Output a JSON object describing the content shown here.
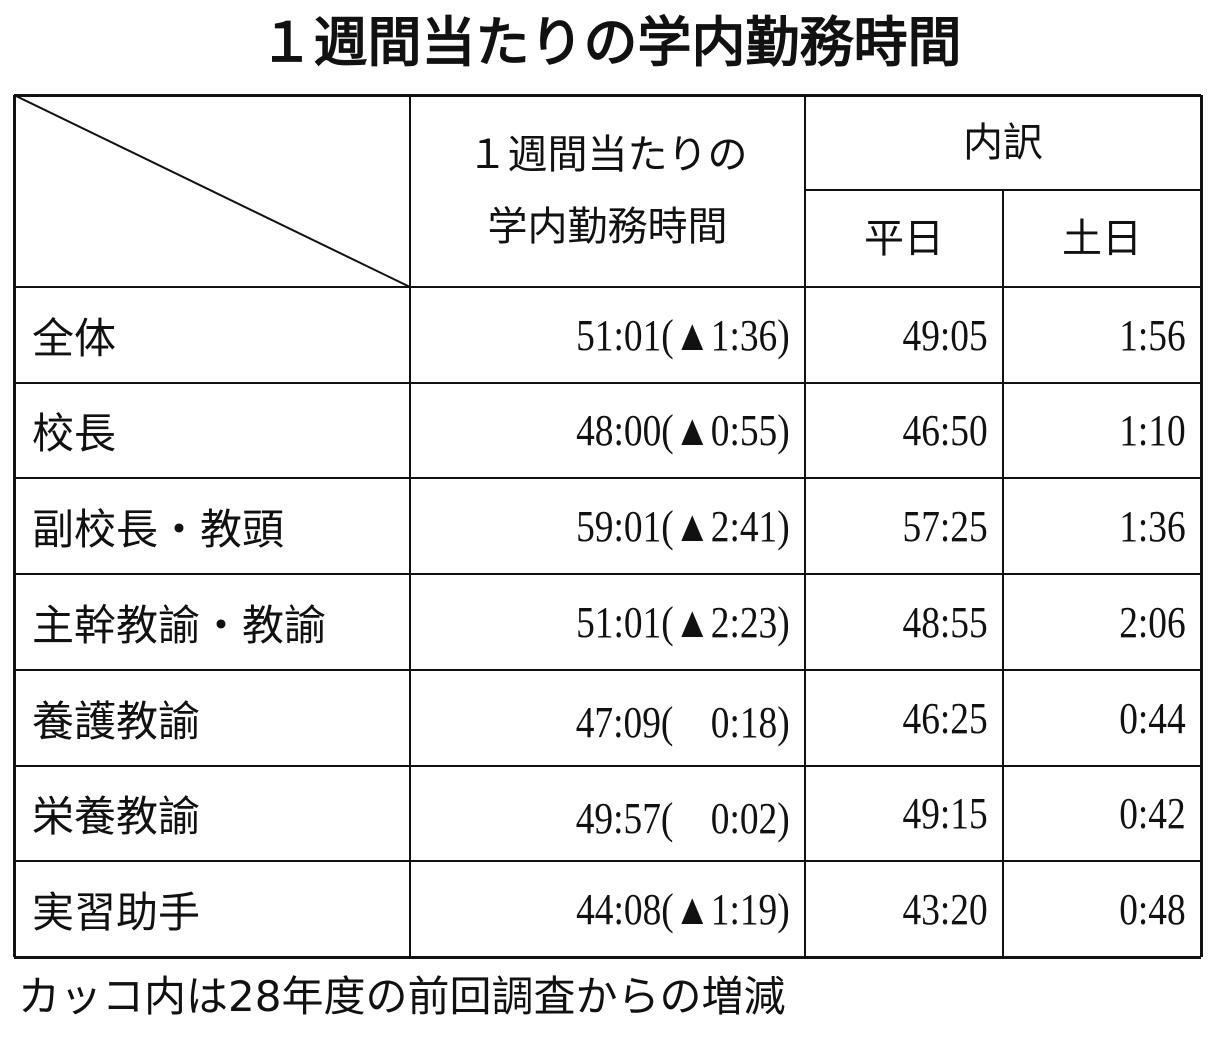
{
  "title": "１週間当たりの学内勤務時間",
  "table": {
    "header": {
      "total": [
        "１週間当たりの",
        "学内勤務時間"
      ],
      "breakdown": "内訳",
      "weekday": "平日",
      "weekend": "土日"
    },
    "rows": [
      [
        "全体",
        "51:01(▲1:36)",
        "49:05",
        "1:56"
      ],
      [
        "校長",
        "48:00(▲0:55)",
        "46:50",
        "1:10"
      ],
      [
        "副校長・教頭",
        "59:01(▲2:41)",
        "57:25",
        "1:36"
      ],
      [
        "主幹教諭・教諭",
        "51:01(▲2:23)",
        "48:55",
        "2:06"
      ],
      [
        "養護教諭",
        "47:09(　0:18)",
        "46:25",
        "0:44"
      ],
      [
        "栄養教諭",
        "49:57(　0:02)",
        "49:15",
        "0:42"
      ],
      [
        "実習助手",
        "44:08(▲1:19)",
        "43:20",
        "0:48"
      ]
    ]
  },
  "note": "カッコ内は28年度の前回調査からの増減"
}
